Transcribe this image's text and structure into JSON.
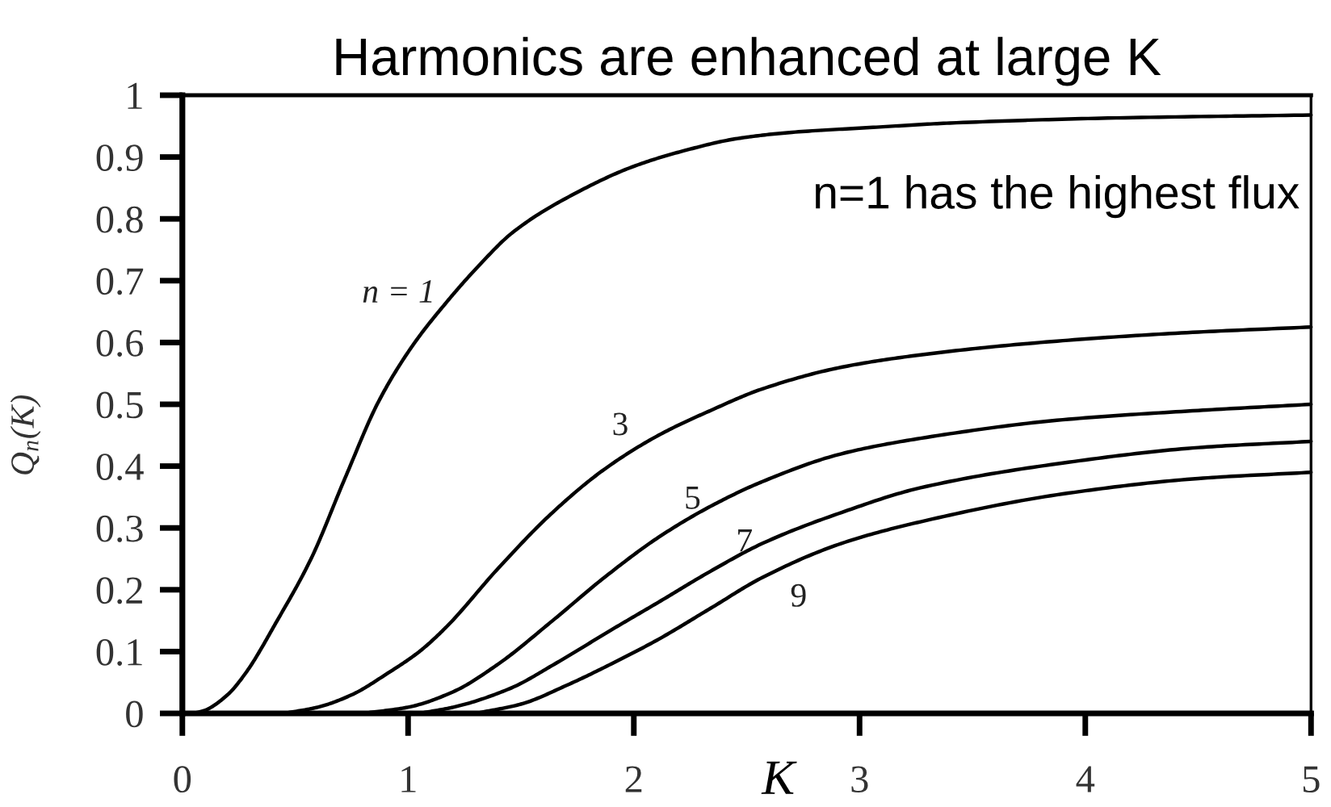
{
  "chart_data": {
    "type": "line",
    "title": "Harmonics are enhanced at large K",
    "xlabel": "K",
    "ylabel": "Q$_{n}$(K)",
    "annotations": [
      "n=1 has the highest flux"
    ],
    "xlim": [
      0,
      5
    ],
    "ylim": [
      0,
      1
    ],
    "xticks": [
      0,
      1,
      2,
      3,
      4,
      5
    ],
    "yticks": [
      0,
      0.1,
      0.2,
      0.3,
      0.4,
      0.5,
      0.6,
      0.7,
      0.8,
      0.9,
      1
    ],
    "grid": false,
    "line_style": "solid",
    "series": [
      {
        "name": "n = 1",
        "color": "#000000",
        "x": [
          0.05,
          0.1,
          0.2,
          0.28,
          0.42,
          0.57,
          0.72,
          0.87,
          1.02,
          1.17,
          1.29,
          1.47,
          1.76,
          2.0,
          2.22,
          2.46,
          2.7,
          3.06,
          3.4,
          4.1,
          5.0
        ],
        "values": [
          0,
          0.005,
          0.03,
          0.065,
          0.15,
          0.25,
          0.38,
          0.505,
          0.595,
          0.665,
          0.715,
          0.78,
          0.845,
          0.885,
          0.91,
          0.93,
          0.94,
          0.948,
          0.955,
          0.963,
          0.968
        ]
      },
      {
        "name": "3",
        "color": "#000000",
        "x": [
          0.45,
          0.6,
          0.75,
          0.91,
          1.05,
          1.17,
          1.4,
          1.64,
          1.87,
          2.11,
          2.34,
          2.57,
          2.92,
          3.27,
          3.8,
          4.4,
          5.0
        ],
        "values": [
          0,
          0.01,
          0.03,
          0.065,
          0.1,
          0.14,
          0.235,
          0.325,
          0.395,
          0.45,
          0.49,
          0.525,
          0.56,
          0.58,
          0.6,
          0.615,
          0.625
        ]
      },
      {
        "name": "5",
        "color": "#000000",
        "x": [
          0.8,
          1.0,
          1.2,
          1.4,
          1.64,
          1.87,
          2.11,
          2.34,
          2.57,
          2.92,
          3.27,
          3.9,
          4.5,
          5.0
        ],
        "values": [
          0,
          0.01,
          0.035,
          0.08,
          0.15,
          0.22,
          0.285,
          0.335,
          0.375,
          0.42,
          0.445,
          0.475,
          0.49,
          0.5
        ]
      },
      {
        "name": "7",
        "color": "#000000",
        "x": [
          1.05,
          1.2,
          1.45,
          1.65,
          1.9,
          2.11,
          2.34,
          2.57,
          2.92,
          3.27,
          3.9,
          4.5,
          5.0
        ],
        "values": [
          0,
          0.01,
          0.04,
          0.08,
          0.135,
          0.18,
          0.23,
          0.275,
          0.325,
          0.365,
          0.405,
          0.43,
          0.44
        ]
      },
      {
        "name": "9",
        "color": "#000000",
        "x": [
          1.3,
          1.5,
          1.7,
          1.9,
          2.11,
          2.34,
          2.57,
          2.92,
          3.27,
          3.9,
          4.5,
          5.0
        ],
        "values": [
          0,
          0.015,
          0.045,
          0.08,
          0.12,
          0.17,
          0.22,
          0.275,
          0.31,
          0.355,
          0.38,
          0.39
        ]
      }
    ]
  }
}
